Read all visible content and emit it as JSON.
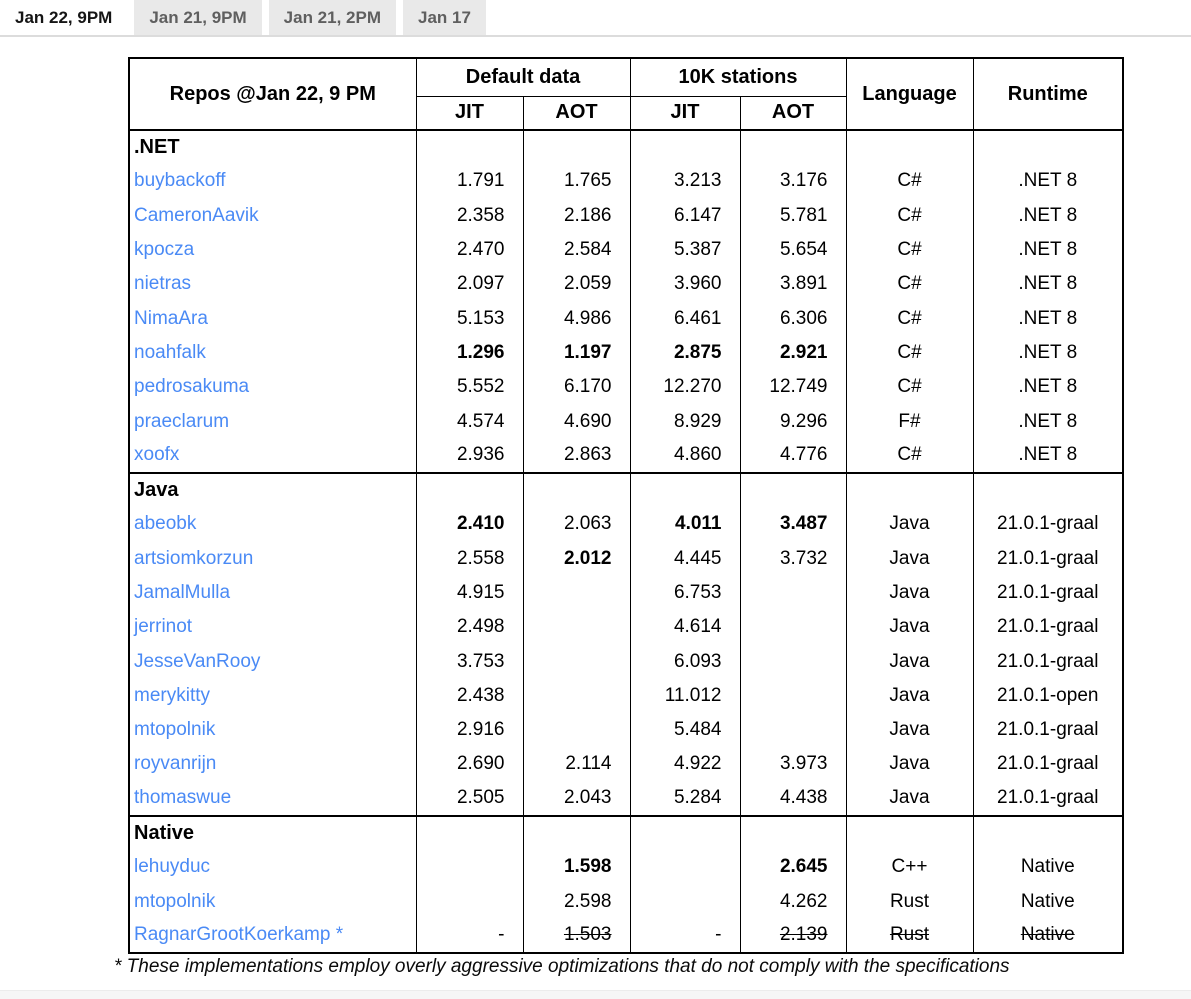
{
  "colors": {
    "link": "#4a8af5",
    "tab_bg": "#e9e9e9",
    "tab_fg": "#5f5f5f",
    "divider": "#dcdcdc"
  },
  "tabs": [
    {
      "label": "Jan 22, 9PM",
      "active": true
    },
    {
      "label": "Jan 21, 9PM",
      "active": false
    },
    {
      "label": "Jan 21, 2PM",
      "active": false
    },
    {
      "label": "Jan 17",
      "active": false
    }
  ],
  "table": {
    "corner_header": "Repos @Jan 22, 9 PM",
    "group_headers": [
      "Default data",
      "10K stations"
    ],
    "sub_headers": [
      "JIT",
      "AOT",
      "JIT",
      "AOT"
    ],
    "language_header": "Language",
    "runtime_header": "Runtime",
    "sections": [
      {
        "name": ".NET",
        "rows": [
          {
            "repo": "buybackoff",
            "cells": [
              "1.791",
              "1.765",
              "3.213",
              "3.176"
            ],
            "bold": [
              false,
              false,
              false,
              false
            ],
            "language": "C#",
            "runtime": ".NET 8"
          },
          {
            "repo": "CameronAavik",
            "cells": [
              "2.358",
              "2.186",
              "6.147",
              "5.781"
            ],
            "bold": [
              false,
              false,
              false,
              false
            ],
            "language": "C#",
            "runtime": ".NET 8"
          },
          {
            "repo": "kpocza",
            "cells": [
              "2.470",
              "2.584",
              "5.387",
              "5.654"
            ],
            "bold": [
              false,
              false,
              false,
              false
            ],
            "language": "C#",
            "runtime": ".NET 8"
          },
          {
            "repo": "nietras",
            "cells": [
              "2.097",
              "2.059",
              "3.960",
              "3.891"
            ],
            "bold": [
              false,
              false,
              false,
              false
            ],
            "language": "C#",
            "runtime": ".NET 8"
          },
          {
            "repo": "NimaAra",
            "cells": [
              "5.153",
              "4.986",
              "6.461",
              "6.306"
            ],
            "bold": [
              false,
              false,
              false,
              false
            ],
            "language": "C#",
            "runtime": ".NET 8"
          },
          {
            "repo": "noahfalk",
            "cells": [
              "1.296",
              "1.197",
              "2.875",
              "2.921"
            ],
            "bold": [
              true,
              true,
              true,
              true
            ],
            "language": "C#",
            "runtime": ".NET 8"
          },
          {
            "repo": "pedrosakuma",
            "cells": [
              "5.552",
              "6.170",
              "12.270",
              "12.749"
            ],
            "bold": [
              false,
              false,
              false,
              false
            ],
            "language": "C#",
            "runtime": ".NET 8"
          },
          {
            "repo": "praeclarum",
            "cells": [
              "4.574",
              "4.690",
              "8.929",
              "9.296"
            ],
            "bold": [
              false,
              false,
              false,
              false
            ],
            "language": "F#",
            "runtime": ".NET 8"
          },
          {
            "repo": "xoofx",
            "cells": [
              "2.936",
              "2.863",
              "4.860",
              "4.776"
            ],
            "bold": [
              false,
              false,
              false,
              false
            ],
            "language": "C#",
            "runtime": ".NET 8"
          }
        ]
      },
      {
        "name": "Java",
        "rows": [
          {
            "repo": "abeobk",
            "cells": [
              "2.410",
              "2.063",
              "4.011",
              "3.487"
            ],
            "bold": [
              true,
              false,
              true,
              true
            ],
            "language": "Java",
            "runtime": "21.0.1-graal"
          },
          {
            "repo": "artsiomkorzun",
            "cells": [
              "2.558",
              "2.012",
              "4.445",
              "3.732"
            ],
            "bold": [
              false,
              true,
              false,
              false
            ],
            "language": "Java",
            "runtime": "21.0.1-graal"
          },
          {
            "repo": "JamalMulla",
            "cells": [
              "4.915",
              "",
              "6.753",
              ""
            ],
            "bold": [
              false,
              false,
              false,
              false
            ],
            "language": "Java",
            "runtime": "21.0.1-graal"
          },
          {
            "repo": "jerrinot",
            "cells": [
              "2.498",
              "",
              "4.614",
              ""
            ],
            "bold": [
              false,
              false,
              false,
              false
            ],
            "language": "Java",
            "runtime": "21.0.1-graal"
          },
          {
            "repo": "JesseVanRooy",
            "cells": [
              "3.753",
              "",
              "6.093",
              ""
            ],
            "bold": [
              false,
              false,
              false,
              false
            ],
            "language": "Java",
            "runtime": "21.0.1-graal"
          },
          {
            "repo": "merykitty",
            "cells": [
              "2.438",
              "",
              "11.012",
              ""
            ],
            "bold": [
              false,
              false,
              false,
              false
            ],
            "language": "Java",
            "runtime": "21.0.1-open"
          },
          {
            "repo": "mtopolnik",
            "cells": [
              "2.916",
              "",
              "5.484",
              ""
            ],
            "bold": [
              false,
              false,
              false,
              false
            ],
            "language": "Java",
            "runtime": "21.0.1-graal"
          },
          {
            "repo": "royvanrijn",
            "cells": [
              "2.690",
              "2.114",
              "4.922",
              "3.973"
            ],
            "bold": [
              false,
              false,
              false,
              false
            ],
            "language": "Java",
            "runtime": "21.0.1-graal"
          },
          {
            "repo": "thomaswue",
            "cells": [
              "2.505",
              "2.043",
              "5.284",
              "4.438"
            ],
            "bold": [
              false,
              false,
              false,
              false
            ],
            "language": "Java",
            "runtime": "21.0.1-graal"
          }
        ]
      },
      {
        "name": "Native",
        "rows": [
          {
            "repo": "lehuyduc",
            "cells": [
              "",
              "1.598",
              "",
              "2.645"
            ],
            "bold": [
              false,
              true,
              false,
              true
            ],
            "language": "C++",
            "runtime": "Native"
          },
          {
            "repo": "mtopolnik",
            "cells": [
              "",
              "2.598",
              "",
              "4.262"
            ],
            "bold": [
              false,
              false,
              false,
              false
            ],
            "language": "Rust",
            "runtime": "Native"
          },
          {
            "repo": "RagnarGrootKoerkamp *",
            "cells": [
              "-",
              "1.503",
              "-",
              "2.139"
            ],
            "bold": [
              false,
              false,
              false,
              false
            ],
            "strike": [
              false,
              true,
              false,
              true
            ],
            "language": "Rust",
            "language_strike": true,
            "runtime": "Native",
            "runtime_strike": true
          }
        ]
      }
    ]
  },
  "footnote": "* These implementations employ overly aggressive optimizations that do not comply with the specifications"
}
